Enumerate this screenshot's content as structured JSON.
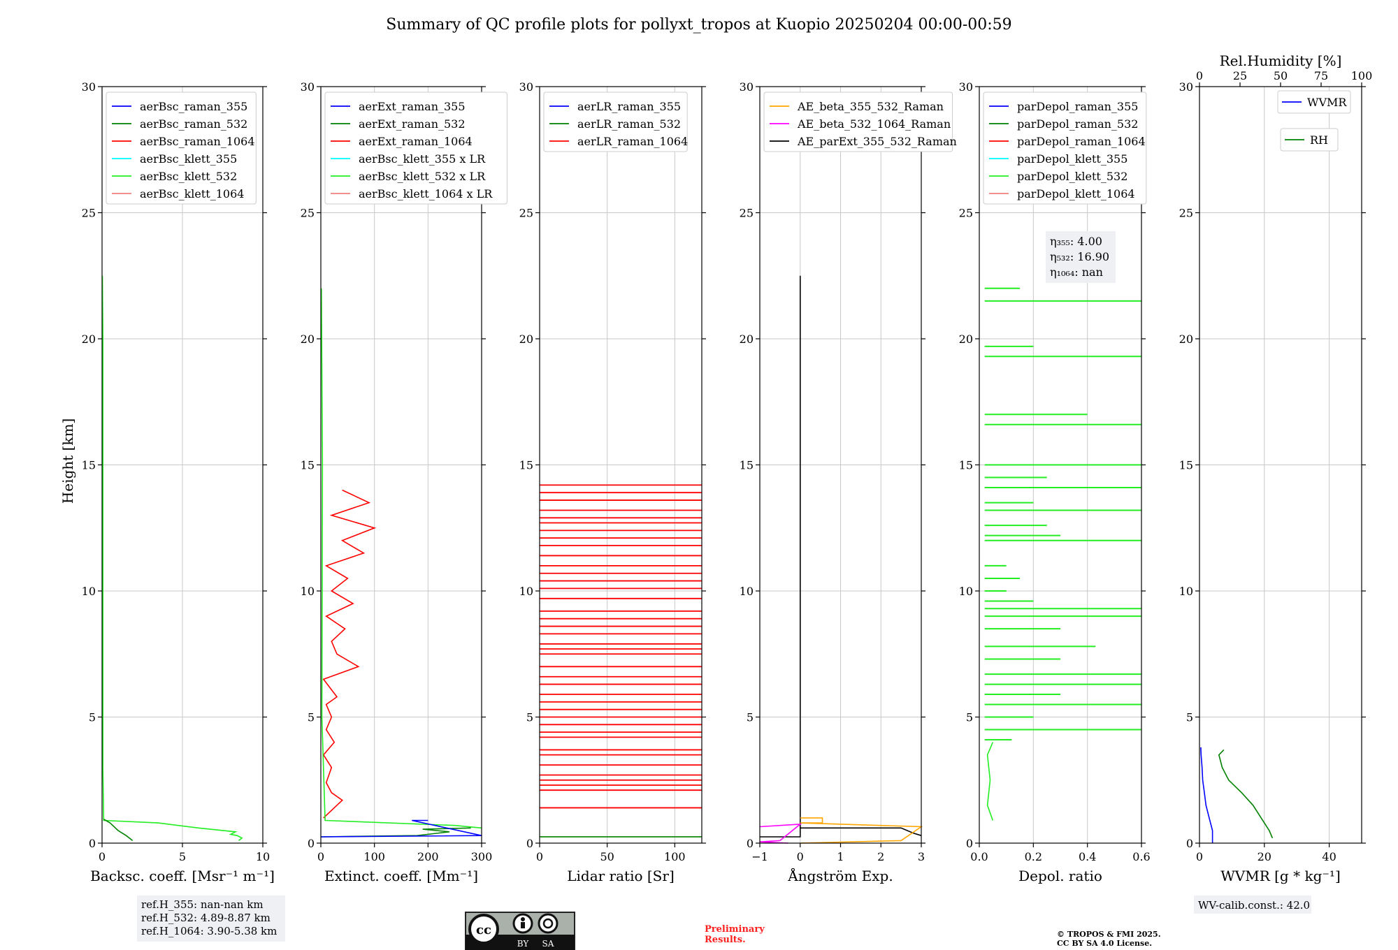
{
  "title": "Summary of QC profile plots for pollyxt_tropos at Kuopio 20250204 00:00-00:59",
  "ylabel": "Height [km]",
  "chart_data": [
    {
      "id": "bsc",
      "type": "line",
      "xlabel": "Backsc. coeff. [Msr⁻¹ m⁻¹]",
      "xlim": [
        0,
        10
      ],
      "xticks": [
        0,
        5,
        10
      ],
      "ylim": [
        0,
        30
      ],
      "yticks": [
        0,
        5,
        10,
        15,
        20,
        25,
        30
      ],
      "legend": [
        {
          "label": "aerBsc_raman_355",
          "color": "#0000ff"
        },
        {
          "label": "aerBsc_raman_532",
          "color": "#008000"
        },
        {
          "label": "aerBsc_raman_1064",
          "color": "#ff0000"
        },
        {
          "label": "aerBsc_klett_355",
          "color": "#00ffff"
        },
        {
          "label": "aerBsc_klett_532",
          "color": "#22ee22"
        },
        {
          "label": "aerBsc_klett_1064",
          "color": "#f08080"
        }
      ],
      "annotation": [
        "ref.H_355: nan-nan km",
        "ref.H_532: 4.89-8.87 km",
        "ref.H_1064: 3.90-5.38 km"
      ],
      "series": [
        {
          "name": "aerBsc_klett_532",
          "color": "#22ee22",
          "points": [
            [
              8.5,
              0.1
            ],
            [
              8.7,
              0.2
            ],
            [
              8.4,
              0.3
            ],
            [
              8.0,
              0.35
            ],
            [
              8.3,
              0.45
            ],
            [
              6.0,
              0.6
            ],
            [
              3.5,
              0.8
            ],
            [
              0.1,
              0.9
            ],
            [
              0.05,
              3
            ],
            [
              0.05,
              10
            ],
            [
              0.05,
              20
            ],
            [
              0.02,
              22.5
            ]
          ]
        },
        {
          "name": "aerBsc_raman_532",
          "color": "#008000",
          "points": [
            [
              1.9,
              0.1
            ],
            [
              1.5,
              0.3
            ],
            [
              1.0,
              0.5
            ],
            [
              0.5,
              0.8
            ],
            [
              0.1,
              0.95
            ]
          ]
        }
      ]
    },
    {
      "id": "ext",
      "type": "line",
      "xlabel": "Extinct. coeff. [Mm⁻¹]",
      "xlim": [
        0,
        300
      ],
      "xticks": [
        0,
        100,
        200,
        300
      ],
      "ylim": [
        0,
        30
      ],
      "yticks": [
        0,
        5,
        10,
        15,
        20,
        25,
        30
      ],
      "legend": [
        {
          "label": "aerExt_raman_355",
          "color": "#0000ff"
        },
        {
          "label": "aerExt_raman_532",
          "color": "#008000"
        },
        {
          "label": "aerExt_raman_1064",
          "color": "#ff0000"
        },
        {
          "label": "aerBsc_klett_355 x LR",
          "color": "#00ffff"
        },
        {
          "label": "aerBsc_klett_532 x LR",
          "color": "#22ee22"
        },
        {
          "label": "aerBsc_klett_1064 x LR",
          "color": "#f08080"
        }
      ],
      "series": [
        {
          "name": "aerExt_raman_1064",
          "color": "#ff0000",
          "points": [
            [
              5,
              1
            ],
            [
              40,
              1.7
            ],
            [
              20,
              2.0
            ],
            [
              10,
              2.4
            ],
            [
              20,
              3
            ],
            [
              5,
              3.5
            ],
            [
              25,
              4
            ],
            [
              10,
              4.5
            ],
            [
              20,
              5
            ],
            [
              10,
              5.5
            ],
            [
              30,
              5.8
            ],
            [
              5,
              6.5
            ],
            [
              70,
              7
            ],
            [
              30,
              7.5
            ],
            [
              20,
              8
            ],
            [
              45,
              8.5
            ],
            [
              10,
              9
            ],
            [
              60,
              9.5
            ],
            [
              20,
              10
            ],
            [
              50,
              10.5
            ],
            [
              10,
              11
            ],
            [
              80,
              11.5
            ],
            [
              40,
              12
            ],
            [
              100,
              12.5
            ],
            [
              20,
              13
            ],
            [
              90,
              13.5
            ],
            [
              40,
              14
            ]
          ]
        },
        {
          "name": "aerBsc_klett_532 x LR",
          "color": "#22ee22",
          "points": [
            [
              300,
              0.6
            ],
            [
              250,
              0.7
            ],
            [
              8,
              0.9
            ],
            [
              2,
              5
            ],
            [
              3,
              15
            ],
            [
              1,
              22
            ]
          ]
        },
        {
          "name": "aerExt_raman_532",
          "color": "#008000",
          "points": [
            [
              0,
              0.25
            ],
            [
              180,
              0.3
            ],
            [
              240,
              0.45
            ],
            [
              190,
              0.55
            ],
            [
              280,
              0.6
            ]
          ]
        },
        {
          "name": "aerExt_raman_355",
          "color": "#0000ff",
          "points": [
            [
              0,
              0.25
            ],
            [
              300,
              0.3
            ],
            [
              170,
              0.9
            ],
            [
              200,
              0.9
            ]
          ]
        }
      ]
    },
    {
      "id": "lr",
      "type": "line",
      "xlabel": "Lidar ratio [Sr]",
      "xlim": [
        0,
        120
      ],
      "xticks": [
        0,
        50,
        100
      ],
      "ylim": [
        0,
        30
      ],
      "yticks": [
        0,
        5,
        10,
        15,
        20,
        25,
        30
      ],
      "legend": [
        {
          "label": "aerLR_raman_355",
          "color": "#0000ff"
        },
        {
          "label": "aerLR_raman_532",
          "color": "#008000"
        },
        {
          "label": "aerLR_raman_1064",
          "color": "#ff0000"
        }
      ],
      "hlines_1064": [
        1.4,
        2.1,
        2.3,
        2.5,
        2.7,
        3.1,
        3.5,
        3.7,
        4.2,
        4.4,
        4.7,
        5.0,
        5.3,
        5.6,
        5.9,
        6.3,
        6.6,
        7.0,
        7.5,
        7.7,
        7.9,
        8.3,
        8.6,
        8.9,
        9.2,
        9.7,
        10.1,
        10.4,
        10.7,
        11.0,
        11.4,
        11.8,
        12.1,
        12.4,
        12.7,
        12.9,
        13.2,
        13.6,
        13.9,
        14.2
      ],
      "hline_532": 0.25
    },
    {
      "id": "ae",
      "type": "line",
      "xlabel": "Ångström Exp.",
      "xlim": [
        -1,
        3
      ],
      "xticks": [
        -1,
        0,
        1,
        2,
        3
      ],
      "ylim": [
        0,
        30
      ],
      "yticks": [
        0,
        5,
        10,
        15,
        20,
        25,
        30
      ],
      "legend": [
        {
          "label": "AE_beta_355_532_Raman",
          "color": "#ffa500"
        },
        {
          "label": "AE_beta_532_1064_Raman",
          "color": "#ff00ff"
        },
        {
          "label": "AE_parExt_355_532_Raman",
          "color": "#000000"
        }
      ],
      "series": [
        {
          "name": "AE_parExt_355_532_Raman",
          "color": "#000000",
          "points": [
            [
              -1,
              0.25
            ],
            [
              0,
              0.25
            ],
            [
              0,
              22.5
            ],
            [
              0,
              0.9
            ],
            [
              0,
              0.6
            ],
            [
              2.5,
              0.6
            ],
            [
              2.8,
              0.4
            ],
            [
              3,
              0.3
            ]
          ]
        },
        {
          "name": "AE_beta_355_532_Raman",
          "color": "#ffa500",
          "points": [
            [
              0,
              1.0
            ],
            [
              0.55,
              1.0
            ],
            [
              0.55,
              0.8
            ],
            [
              0,
              0.8
            ],
            [
              3,
              0.65
            ],
            [
              2.5,
              0.1
            ],
            [
              0,
              0.0
            ]
          ]
        },
        {
          "name": "AE_beta_532_1064_Raman",
          "color": "#ff00ff",
          "points": [
            [
              -1,
              0.65
            ],
            [
              0,
              0.75
            ],
            [
              -0.5,
              0.1
            ],
            [
              -1,
              0.05
            ],
            [
              -0.3,
              0
            ]
          ]
        }
      ]
    },
    {
      "id": "depol",
      "type": "line",
      "xlabel": "Depol. ratio",
      "xlim": [
        0,
        0.6
      ],
      "xticks": [
        0.0,
        0.2,
        0.4,
        0.6
      ],
      "ylim": [
        0,
        30
      ],
      "yticks": [
        0,
        5,
        10,
        15,
        20,
        25,
        30
      ],
      "legend": [
        {
          "label": "parDepol_raman_355",
          "color": "#0000ff"
        },
        {
          "label": "parDepol_raman_532",
          "color": "#008000"
        },
        {
          "label": "parDepol_raman_1064",
          "color": "#ff0000"
        },
        {
          "label": "parDepol_klett_355",
          "color": "#00ffff"
        },
        {
          "label": "parDepol_klett_532",
          "color": "#22ee22"
        },
        {
          "label": "parDepol_klett_1064",
          "color": "#f08080"
        }
      ],
      "eta": [
        "η₃₅₅: 4.00",
        "η₅₃₂: 16.90",
        "η₁₀₆₄: nan"
      ],
      "spikes_532": [
        [
          4.1,
          0.12
        ],
        [
          4.5,
          0.6
        ],
        [
          5.0,
          0.2
        ],
        [
          5.5,
          0.6
        ],
        [
          5.9,
          0.3
        ],
        [
          6.3,
          0.6
        ],
        [
          6.7,
          0.6
        ],
        [
          7.3,
          0.3
        ],
        [
          7.8,
          0.43
        ],
        [
          8.5,
          0.3
        ],
        [
          9.0,
          0.6
        ],
        [
          9.3,
          0.6
        ],
        [
          9.6,
          0.2
        ],
        [
          10.0,
          0.1
        ],
        [
          10.5,
          0.15
        ],
        [
          11.0,
          0.1
        ],
        [
          12.0,
          0.6
        ],
        [
          12.2,
          0.3
        ],
        [
          12.6,
          0.25
        ],
        [
          13.2,
          0.6
        ],
        [
          13.5,
          0.2
        ],
        [
          14.1,
          0.6
        ],
        [
          14.5,
          0.25
        ],
        [
          15.0,
          0.6
        ],
        [
          16.6,
          0.6
        ],
        [
          17.0,
          0.4
        ],
        [
          19.3,
          0.6
        ],
        [
          19.7,
          0.2
        ],
        [
          21.5,
          0.6
        ],
        [
          22.0,
          0.15
        ]
      ],
      "profile_532": [
        [
          0.05,
          0.9
        ],
        [
          0.03,
          1.5
        ],
        [
          0.04,
          2.5
        ],
        [
          0.03,
          3.5
        ],
        [
          0.05,
          4.0
        ]
      ]
    },
    {
      "id": "wv",
      "type": "scatter",
      "xlabel": "WVMR [g * kg⁻¹]",
      "xlim": [
        0,
        50
      ],
      "xticks": [
        0,
        20,
        40
      ],
      "ylim": [
        0,
        30
      ],
      "yticks": [
        0,
        5,
        10,
        15,
        20,
        25,
        30
      ],
      "top_xlabel": "Rel.Humidity [%]",
      "top_xlim": [
        0,
        100
      ],
      "top_xticks": [
        0,
        25,
        50,
        75,
        100
      ],
      "legend": [
        {
          "label": "WVMR",
          "color": "#0000ff"
        },
        {
          "label": "RH",
          "color": "#008000"
        }
      ],
      "annotation": [
        "WV-calib.const.: 42.0"
      ],
      "series": [
        {
          "name": "WVMR",
          "color": "#0000ff",
          "points": [
            [
              4,
              0
            ],
            [
              4,
              0.5
            ],
            [
              3,
              1
            ],
            [
              2,
              1.5
            ],
            [
              1.5,
              2
            ],
            [
              1,
              2.5
            ],
            [
              0.8,
              3
            ],
            [
              0.5,
              3.5
            ],
            [
              0.4,
              3.8
            ]
          ]
        },
        {
          "name": "RH",
          "color": "#008000",
          "axis": "top",
          "points": [
            [
              45,
              0.2
            ],
            [
              43,
              0.5
            ],
            [
              38,
              1
            ],
            [
              33,
              1.5
            ],
            [
              26,
              2
            ],
            [
              18,
              2.5
            ],
            [
              14,
              3
            ],
            [
              12,
              3.5
            ],
            [
              15,
              3.7
            ]
          ]
        }
      ]
    }
  ],
  "license_badge": {
    "by": "BY",
    "sa": "SA",
    "cc": "cc"
  },
  "preliminary": [
    "Preliminary",
    "Results."
  ],
  "copyright": [
    "© TROPOS & FMI 2025.",
    "CC BY SA 4.0 License."
  ]
}
